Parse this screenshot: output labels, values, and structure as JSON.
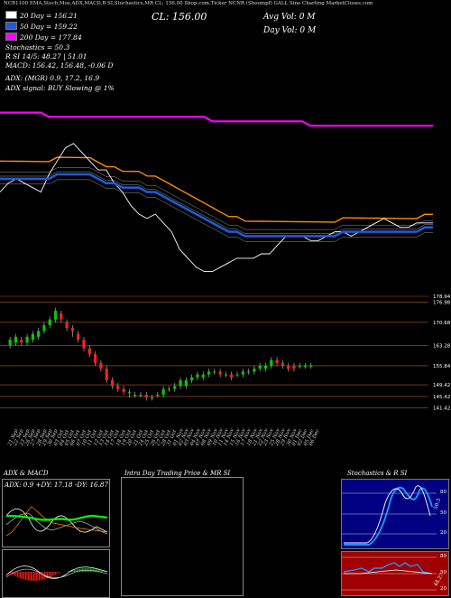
{
  "header": {
    "top_line": "NCR1100  EMA,Stoch,Mos,ADX,MACD,B          SI,Stochastics,MR      CL: 156.00      Shop.com.Ticker NCNR       (Shoompf) GALL Sine Charting MarketCloses.com",
    "close_label": "CL: 156.00",
    "avg_vol": "Avg Vol: 0  M",
    "day_vol": "Day Vol: 0  M",
    "ema_legend": [
      {
        "label": "20  Day = 156.21",
        "color": "#ffffff"
      },
      {
        "label": "50  Day = 159.22",
        "color": "#1e5bd8"
      },
      {
        "label": "200  Day = 177.84",
        "color": "#ff00ff"
      }
    ],
    "stoch_line": "Stochastics = 50.3",
    "r_line": "R                SI 14/5: 48.27 | 51.01",
    "macd_line": "MACD: 156.42,  156.48,  -0.06  D",
    "adx_line": "ADX:                     (MGR) 0.9,  17.2,  16.9",
    "adx_signal": "ADX  signal:                     BUY Slowing @ 1%"
  },
  "candles": {
    "price_labels": [
      "178.94",
      "176.98",
      "170.68",
      "163.28",
      "155.84",
      "149.42",
      "145.42",
      "141.42"
    ],
    "dates": [
      "21 Sep",
      "22 Sep",
      "23 Sep",
      "26 Sep",
      "27 Sep",
      "28 Sep",
      "29 Sep",
      "30 Sep",
      "03 Oct",
      "04 Oct",
      "05 Oct",
      "06 Oct",
      "07 Oct",
      "10 Oct",
      "11 Oct",
      "12 Oct",
      "13 Oct",
      "14 Oct",
      "17 Oct",
      "18 Oct",
      "19 Oct",
      "20 Oct",
      "21 Oct",
      "24 Oct",
      "25 Oct",
      "26 Oct",
      "27 Oct",
      "28 Oct",
      "31 Oct",
      "01 Nov",
      "02 Nov",
      "03 Nov",
      "04 Nov",
      "07 Nov",
      "08 Nov",
      "09 Nov",
      "10 Nov",
      "11 Nov",
      "14 Nov",
      "15 Nov",
      "16 Nov",
      "17 Nov",
      "18 Nov",
      "21 Nov",
      "22 Nov",
      "23 Nov",
      "25 Nov",
      "28 Nov",
      "29 Nov",
      "30 Nov",
      "01 Dec",
      "02 Dec",
      "05 Dec",
      "06 Dec"
    ]
  },
  "panels": {
    "adx_title": "ADX  & MACD",
    "adx_values": "ADX: 0.9  +DY: 17.18  -DY: 16.87",
    "intraday_title": "Intra Day Trading Price  & MR                    SI",
    "stoch_title": "Stochastics & R                     SI",
    "stoch_levels": [
      "80",
      "50",
      "20"
    ],
    "rsi_levels": [
      "80",
      "50",
      "20"
    ],
    "stoch_tag": "50.3",
    "rsi_tag": "48.27"
  },
  "colors": {
    "ema20": "#ffffff",
    "ema50": "#1e5bd8",
    "ema200": "#ff00ff",
    "orange": "#ff8c00",
    "green_candle": "#00cc00",
    "red_candle": "#ff2020",
    "stoch_bg": "#000080",
    "rsi_bg": "#a00000"
  },
  "chart_data": [
    {
      "type": "line",
      "title": "Price with moving averages",
      "series": [
        {
          "name": "20 Day",
          "values": [
            163,
            165,
            166,
            165,
            164,
            163,
            167,
            170,
            173,
            174,
            172,
            170,
            168,
            168,
            165,
            163,
            160,
            158,
            157,
            158,
            156,
            154,
            150,
            148,
            146,
            145,
            145,
            146,
            147,
            148,
            148,
            148,
            149,
            149,
            151,
            153,
            153,
            153,
            152,
            152,
            153,
            154,
            154,
            153,
            154,
            155,
            156,
            157,
            156,
            155,
            155,
            156,
            156,
            156
          ]
        },
        {
          "name": "50 Day",
          "values": [
            166,
            166,
            166,
            166,
            166,
            166,
            166,
            167,
            167,
            167,
            167,
            167,
            166,
            165,
            165,
            164,
            164,
            164,
            163,
            163,
            162,
            161,
            160,
            159,
            158,
            157,
            156,
            155,
            154,
            154,
            153,
            153,
            153,
            153,
            153,
            153,
            153,
            153,
            153,
            153,
            153,
            153,
            154,
            154,
            154,
            154,
            154,
            154,
            154,
            154,
            154,
            154,
            155,
            155
          ]
        },
        {
          "name": "200 Day",
          "values": [
            181,
            181,
            181,
            181,
            181,
            181,
            180,
            180,
            180,
            180,
            180,
            180,
            180,
            180,
            180,
            180,
            180,
            180,
            180,
            180,
            180,
            180,
            180,
            180,
            180,
            180,
            179,
            179,
            179,
            179,
            179,
            179,
            179,
            179,
            179,
            179,
            179,
            179,
            178,
            178,
            178,
            178,
            178,
            178,
            178,
            178,
            178,
            178,
            178,
            178,
            178,
            178,
            178,
            178
          ]
        }
      ],
      "ylim": [
        140,
        185
      ]
    },
    {
      "type": "bar",
      "title": "Daily candles",
      "categories": [
        "21 Sep",
        "22 Sep",
        "23 Sep",
        "26 Sep",
        "27 Sep",
        "28 Sep",
        "29 Sep",
        "30 Sep",
        "03 Oct",
        "04 Oct",
        "05 Oct",
        "06 Oct",
        "07 Oct",
        "10 Oct",
        "11 Oct",
        "12 Oct",
        "13 Oct",
        "14 Oct",
        "17 Oct",
        "18 Oct",
        "19 Oct",
        "20 Oct",
        "21 Oct",
        "24 Oct",
        "25 Oct",
        "26 Oct",
        "27 Oct",
        "28 Oct",
        "31 Oct",
        "01 Nov",
        "02 Nov",
        "03 Nov",
        "04 Nov",
        "07 Nov",
        "08 Nov",
        "09 Nov",
        "10 Nov",
        "11 Nov",
        "14 Nov",
        "15 Nov",
        "16 Nov",
        "17 Nov",
        "18 Nov",
        "21 Nov",
        "22 Nov",
        "23 Nov",
        "25 Nov",
        "28 Nov",
        "29 Nov",
        "30 Nov",
        "01 Dec",
        "02 Dec",
        "05 Dec",
        "06 Dec"
      ],
      "series": [
        {
          "name": "open",
          "values": [
            163,
            164,
            165,
            164,
            165,
            166,
            168,
            170,
            172,
            174,
            171,
            169,
            167,
            165,
            162,
            160,
            157,
            155,
            151,
            149,
            148,
            147,
            146,
            146,
            146,
            145,
            146,
            146,
            148,
            148,
            149,
            149,
            151,
            152,
            152,
            153,
            154,
            154,
            153,
            153,
            153,
            153,
            154,
            154,
            155,
            155,
            156,
            158,
            157,
            156,
            156,
            156,
            156,
            156
          ]
        },
        {
          "name": "close",
          "values": [
            165,
            166,
            164,
            166,
            167,
            168,
            170,
            172,
            175,
            172,
            169,
            168,
            165,
            162,
            160,
            157,
            155,
            151,
            149,
            148,
            147,
            147,
            146,
            146,
            145,
            145,
            146,
            148,
            148,
            149,
            151,
            151,
            152,
            153,
            153,
            154,
            154,
            153,
            153,
            152,
            153,
            154,
            154,
            155,
            156,
            156,
            158,
            157,
            156,
            155,
            155,
            156,
            156,
            156
          ]
        },
        {
          "name": "high",
          "values": [
            166,
            167,
            166,
            167,
            168,
            169,
            171,
            173,
            176,
            175,
            172,
            170,
            168,
            166,
            163,
            161,
            158,
            156,
            152,
            150,
            149,
            148,
            147,
            147,
            147,
            146,
            147,
            149,
            149,
            150,
            152,
            152,
            153,
            154,
            154,
            155,
            155,
            155,
            154,
            154,
            154,
            155,
            155,
            156,
            157,
            157,
            159,
            159,
            158,
            157,
            157,
            157,
            157,
            157
          ]
        },
        {
          "name": "low",
          "values": [
            162,
            163,
            163,
            163,
            164,
            165,
            167,
            169,
            171,
            171,
            168,
            166,
            164,
            161,
            159,
            156,
            154,
            150,
            148,
            147,
            146,
            145,
            145,
            145,
            144,
            144,
            145,
            145,
            147,
            147,
            148,
            148,
            150,
            151,
            151,
            152,
            153,
            152,
            152,
            151,
            152,
            152,
            153,
            153,
            154,
            154,
            155,
            156,
            155,
            154,
            154,
            155,
            155,
            155
          ]
        }
      ],
      "ylim": [
        141,
        180
      ]
    }
  ]
}
